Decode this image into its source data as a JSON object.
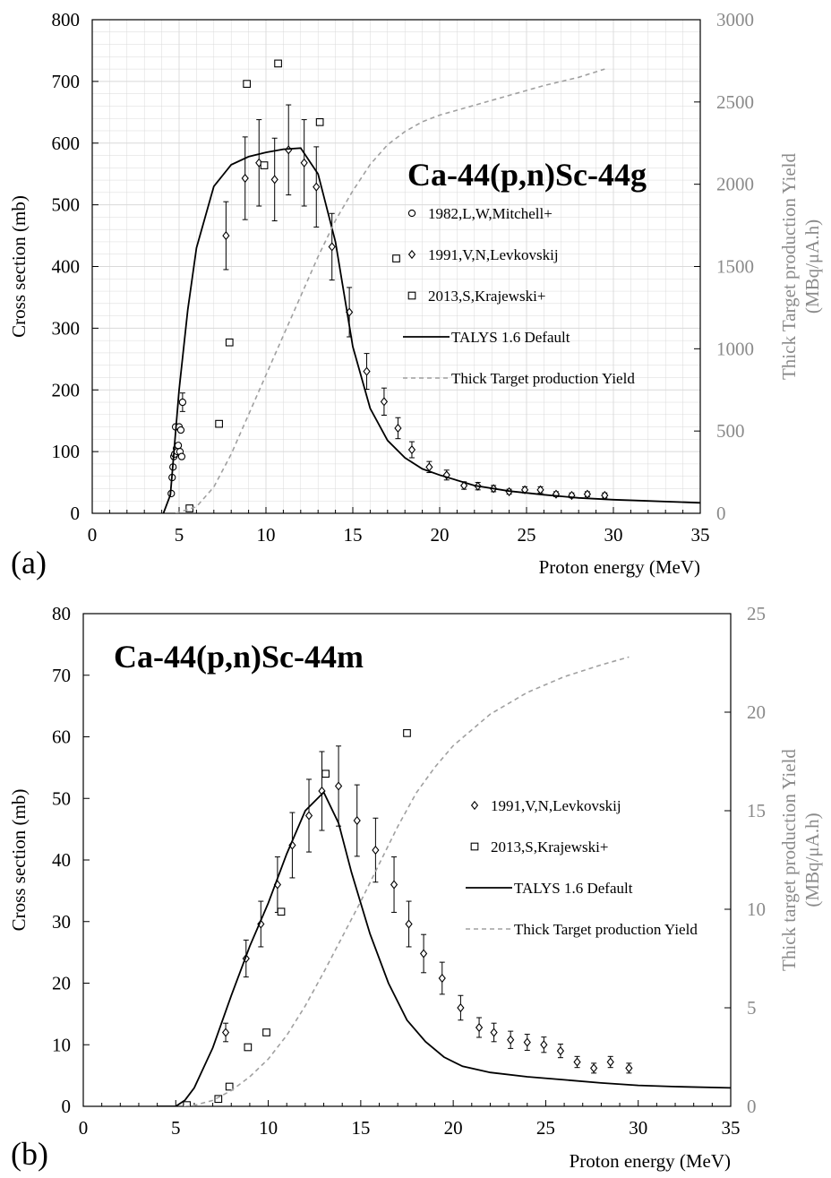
{
  "colors": {
    "axis": "#000000",
    "grid": "#d9d9d9",
    "talys": "#000000",
    "yield": "#a0a0a0",
    "right_axis": "#8a8a8a"
  },
  "chart_data": [
    {
      "type": "scatter",
      "panel_label": "(a)",
      "title": "Ca-44(p,n)Sc-44g",
      "xlabel": "Proton energy (MeV)",
      "ylabel": "Cross section (mb)",
      "y2label_line1": "Thick Target production Yield",
      "y2label_line2": "(MBq/μA.h)",
      "xlim": [
        0,
        35
      ],
      "ylim": [
        0,
        800
      ],
      "y2lim": [
        0,
        3000
      ],
      "x_ticks": [
        0,
        5,
        10,
        15,
        20,
        25,
        30,
        35
      ],
      "y_ticks": [
        0,
        100,
        200,
        300,
        400,
        500,
        600,
        700,
        800
      ],
      "y2_ticks": [
        0,
        500,
        1000,
        1500,
        2000,
        2500,
        3000
      ],
      "grid": true,
      "legend_position": "right-middle",
      "series": [
        {
          "name": "1982,L,W,Mitchell+",
          "kind": "points",
          "marker": "circle",
          "points": [
            [
              4.55,
              32
            ],
            [
              4.6,
              58
            ],
            [
              4.65,
              75
            ],
            [
              4.7,
              92
            ],
            [
              4.75,
              96
            ],
            [
              4.8,
              140
            ],
            [
              4.85,
              105
            ],
            [
              4.9,
              100
            ],
            [
              4.95,
              110
            ],
            [
              5.0,
              140
            ],
            [
              5.05,
              100
            ],
            [
              5.1,
              135
            ],
            [
              5.15,
              92
            ],
            [
              5.2,
              180
            ]
          ],
          "errors": [
            0,
            0,
            0,
            0,
            0,
            0,
            0,
            0,
            0,
            0,
            0,
            0,
            0,
            15
          ]
        },
        {
          "name": "1991,V,N,Levkovskij",
          "kind": "points",
          "marker": "diamond",
          "points": [
            [
              7.7,
              450
            ],
            [
              8.8,
              543
            ],
            [
              9.6,
              568
            ],
            [
              10.5,
              541
            ],
            [
              11.3,
              589
            ],
            [
              12.2,
              568
            ],
            [
              12.9,
              529
            ],
            [
              13.8,
              432
            ],
            [
              14.8,
              326
            ],
            [
              15.8,
              230
            ],
            [
              16.8,
              181
            ],
            [
              17.6,
              138
            ],
            [
              18.4,
              103
            ],
            [
              19.4,
              75
            ],
            [
              20.4,
              62
            ],
            [
              21.4,
              45
            ],
            [
              22.2,
              44
            ],
            [
              23.1,
              40
            ],
            [
              24.0,
              35
            ],
            [
              24.9,
              38
            ],
            [
              25.8,
              38
            ],
            [
              26.7,
              31
            ],
            [
              27.6,
              29
            ],
            [
              28.5,
              31
            ],
            [
              29.5,
              29
            ]
          ],
          "errors": [
            55,
            67,
            70,
            67,
            73,
            70,
            65,
            54,
            40,
            29,
            22,
            17,
            13,
            9,
            8,
            6,
            6,
            5,
            4,
            5,
            5,
            4,
            4,
            4,
            4
          ]
        },
        {
          "name": "2013,S,Krajewski+",
          "kind": "points",
          "marker": "square",
          "points": [
            [
              5.6,
              8
            ],
            [
              7.3,
              145
            ],
            [
              7.9,
              277
            ],
            [
              8.9,
              696
            ],
            [
              9.9,
              564
            ],
            [
              10.7,
              729
            ],
            [
              13.1,
              634
            ],
            [
              17.5,
              413
            ]
          ],
          "errors": []
        },
        {
          "name": "TALYS 1.6 Default",
          "kind": "line",
          "style": "solid",
          "points": [
            [
              4.1,
              0
            ],
            [
              4.5,
              30
            ],
            [
              5.0,
              200
            ],
            [
              5.5,
              330
            ],
            [
              6.0,
              430
            ],
            [
              7.0,
              530
            ],
            [
              8.0,
              565
            ],
            [
              9.0,
              578
            ],
            [
              10.0,
              585
            ],
            [
              11.0,
              590
            ],
            [
              12.0,
              592
            ],
            [
              13.0,
              550
            ],
            [
              14.0,
              440
            ],
            [
              15.0,
              270
            ],
            [
              16.0,
              170
            ],
            [
              17.0,
              118
            ],
            [
              18.0,
              90
            ],
            [
              19.0,
              72
            ],
            [
              20.0,
              62
            ],
            [
              22.0,
              45
            ],
            [
              24.0,
              36
            ],
            [
              26.0,
              30
            ],
            [
              28.0,
              25
            ],
            [
              30.0,
              22
            ],
            [
              32.0,
              20
            ],
            [
              35.0,
              17
            ]
          ]
        },
        {
          "name": "Thick Target production Yield",
          "kind": "line",
          "style": "dashed",
          "axis": "right",
          "points": [
            [
              4.8,
              0
            ],
            [
              6.0,
              40
            ],
            [
              7.0,
              160
            ],
            [
              8.0,
              360
            ],
            [
              9.0,
              600
            ],
            [
              10.0,
              840
            ],
            [
              11.0,
              1080
            ],
            [
              12.0,
              1320
            ],
            [
              13.0,
              1560
            ],
            [
              14.0,
              1780
            ],
            [
              15.0,
              1960
            ],
            [
              16.0,
              2120
            ],
            [
              17.0,
              2240
            ],
            [
              18.0,
              2320
            ],
            [
              19.0,
              2380
            ],
            [
              20.0,
              2420
            ],
            [
              22.0,
              2480
            ],
            [
              24.0,
              2540
            ],
            [
              26.0,
              2600
            ],
            [
              28.0,
              2650
            ],
            [
              29.5,
              2700
            ]
          ]
        }
      ]
    },
    {
      "type": "scatter",
      "panel_label": "(b)",
      "title": "Ca-44(p,n)Sc-44m",
      "xlabel": "Proton energy (MeV)",
      "ylabel": "Cross section (mb)",
      "y2label_line1": "Thick target production Yield",
      "y2label_line2": "(MBq/μA.h)",
      "xlim": [
        0,
        35
      ],
      "ylim": [
        0,
        80
      ],
      "y2lim": [
        0,
        25
      ],
      "x_ticks": [
        0,
        5,
        10,
        15,
        20,
        25,
        30,
        35
      ],
      "y_ticks": [
        0,
        10,
        20,
        30,
        40,
        50,
        60,
        70,
        80
      ],
      "y2_ticks": [
        0,
        5,
        10,
        15,
        20,
        25
      ],
      "grid": false,
      "legend_position": "right-middle",
      "series": [
        {
          "name": "1991,V,N,Levkovskij",
          "kind": "points",
          "marker": "diamond",
          "points": [
            [
              7.7,
              12
            ],
            [
              8.8,
              24
            ],
            [
              9.6,
              29.6
            ],
            [
              10.5,
              36
            ],
            [
              11.3,
              42.4
            ],
            [
              12.2,
              47.2
            ],
            [
              12.9,
              51.2
            ],
            [
              13.8,
              52
            ],
            [
              14.8,
              46.4
            ],
            [
              15.8,
              41.6
            ],
            [
              16.8,
              36
            ],
            [
              17.6,
              29.6
            ],
            [
              18.4,
              24.8
            ],
            [
              19.4,
              20.8
            ],
            [
              20.4,
              16
            ],
            [
              21.4,
              12.8
            ],
            [
              22.2,
              12
            ],
            [
              23.1,
              10.8
            ],
            [
              24.0,
              10.4
            ],
            [
              24.9,
              10
            ],
            [
              25.8,
              9
            ],
            [
              26.7,
              7.2
            ],
            [
              27.6,
              6.2
            ],
            [
              28.5,
              7.2
            ],
            [
              29.5,
              6.2
            ]
          ],
          "errors": [
            1.5,
            3,
            3.7,
            4.5,
            5.3,
            5.9,
            6.4,
            6.5,
            5.8,
            5.2,
            4.5,
            3.7,
            3.1,
            2.6,
            2,
            1.6,
            1.5,
            1.4,
            1.3,
            1.25,
            1.1,
            0.9,
            0.8,
            0.9,
            0.8
          ]
        },
        {
          "name": "2013,S,Krajewski+",
          "kind": "points",
          "marker": "square",
          "points": [
            [
              5.6,
              0.2
            ],
            [
              7.3,
              1.2
            ],
            [
              7.9,
              3.2
            ],
            [
              8.9,
              9.6
            ],
            [
              9.9,
              12
            ],
            [
              10.7,
              31.6
            ],
            [
              13.1,
              54
            ],
            [
              17.5,
              60.6
            ]
          ],
          "errors": []
        },
        {
          "name": "TALYS 1.6 Default",
          "kind": "line",
          "style": "solid",
          "points": [
            [
              4.0,
              0
            ],
            [
              5.0,
              0
            ],
            [
              5.5,
              1
            ],
            [
              6.0,
              3
            ],
            [
              7.0,
              9.5
            ],
            [
              8.0,
              18
            ],
            [
              9.0,
              26
            ],
            [
              10.0,
              33
            ],
            [
              11.0,
              41
            ],
            [
              12.0,
              48
            ],
            [
              13.0,
              51
            ],
            [
              13.8,
              46
            ],
            [
              14.5,
              38
            ],
            [
              15.5,
              28
            ],
            [
              16.5,
              20
            ],
            [
              17.5,
              14
            ],
            [
              18.5,
              10.5
            ],
            [
              19.5,
              8
            ],
            [
              20.5,
              6.5
            ],
            [
              22.0,
              5.5
            ],
            [
              24.0,
              4.8
            ],
            [
              26.0,
              4.3
            ],
            [
              28.0,
              3.8
            ],
            [
              30.0,
              3.4
            ],
            [
              32.0,
              3.2
            ],
            [
              35.0,
              3.0
            ]
          ]
        },
        {
          "name": "Thick Target production Yield",
          "kind": "line",
          "style": "dashed",
          "axis": "right",
          "points": [
            [
              5.5,
              0
            ],
            [
              6.0,
              0.05
            ],
            [
              7.0,
              0.3
            ],
            [
              8.0,
              0.8
            ],
            [
              9.0,
              1.5
            ],
            [
              10.0,
              2.4
            ],
            [
              11.0,
              3.6
            ],
            [
              12.0,
              5.1
            ],
            [
              13.0,
              6.8
            ],
            [
              14.0,
              8.6
            ],
            [
              15.0,
              10.4
            ],
            [
              16.0,
              12.3
            ],
            [
              17.0,
              14.2
            ],
            [
              18.0,
              15.9
            ],
            [
              19.0,
              17.2
            ],
            [
              20.0,
              18.3
            ],
            [
              22.0,
              19.9
            ],
            [
              24.0,
              21.0
            ],
            [
              26.0,
              21.8
            ],
            [
              28.0,
              22.4
            ],
            [
              29.5,
              22.8
            ]
          ]
        }
      ]
    }
  ]
}
